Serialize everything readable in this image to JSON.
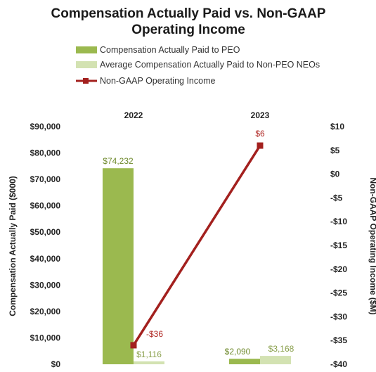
{
  "chart_data": {
    "type": "bar",
    "title_lines": [
      "Compensation Actually Paid vs. Non-GAAP",
      "Operating Income"
    ],
    "categories": [
      "2022",
      "2023"
    ],
    "series": [
      {
        "name": "Compensation Actually Paid to PEO",
        "kind": "bar",
        "axis": "left",
        "color": "#9bb94f",
        "values": [
          74232,
          2090
        ],
        "labels": [
          "$74,232",
          "$2,090"
        ]
      },
      {
        "name": "Average Compensation Actually Paid to Non-PEO NEOs",
        "kind": "bar",
        "axis": "left",
        "color": "#d3e2b2",
        "values": [
          1116,
          3168
        ],
        "labels": [
          "$1,116",
          "$3,168"
        ]
      },
      {
        "name": "Non-GAAP Operating Income",
        "kind": "line",
        "axis": "right",
        "color": "#a3201e",
        "values": [
          -36,
          6
        ],
        "labels": [
          "-$36",
          "$6"
        ]
      }
    ],
    "ylabel": "Compensation Actually Paid ($000)",
    "y2label": "Non-GAAP Operating Income ($M)",
    "ylim": [
      0,
      90000
    ],
    "y2lim": [
      -40,
      10
    ],
    "yticks": [
      0,
      10000,
      20000,
      30000,
      40000,
      50000,
      60000,
      70000,
      80000,
      90000
    ],
    "ytick_labels": [
      "$0",
      "$10,000",
      "$20,000",
      "$30,000",
      "$40,000",
      "$50,000",
      "$60,000",
      "$70,000",
      "$80,000",
      "$90,000"
    ],
    "y2ticks": [
      -40,
      -35,
      -30,
      -25,
      -20,
      -15,
      -10,
      -5,
      0,
      5,
      10
    ],
    "y2tick_labels": [
      "-$40",
      "-$35",
      "-$30",
      "-$25",
      "-$20",
      "-$15",
      "-$10",
      "-$5",
      "$0",
      "$5",
      "$10"
    ],
    "legend_position": "top-left",
    "grid": false,
    "category_labels_position": "top"
  }
}
